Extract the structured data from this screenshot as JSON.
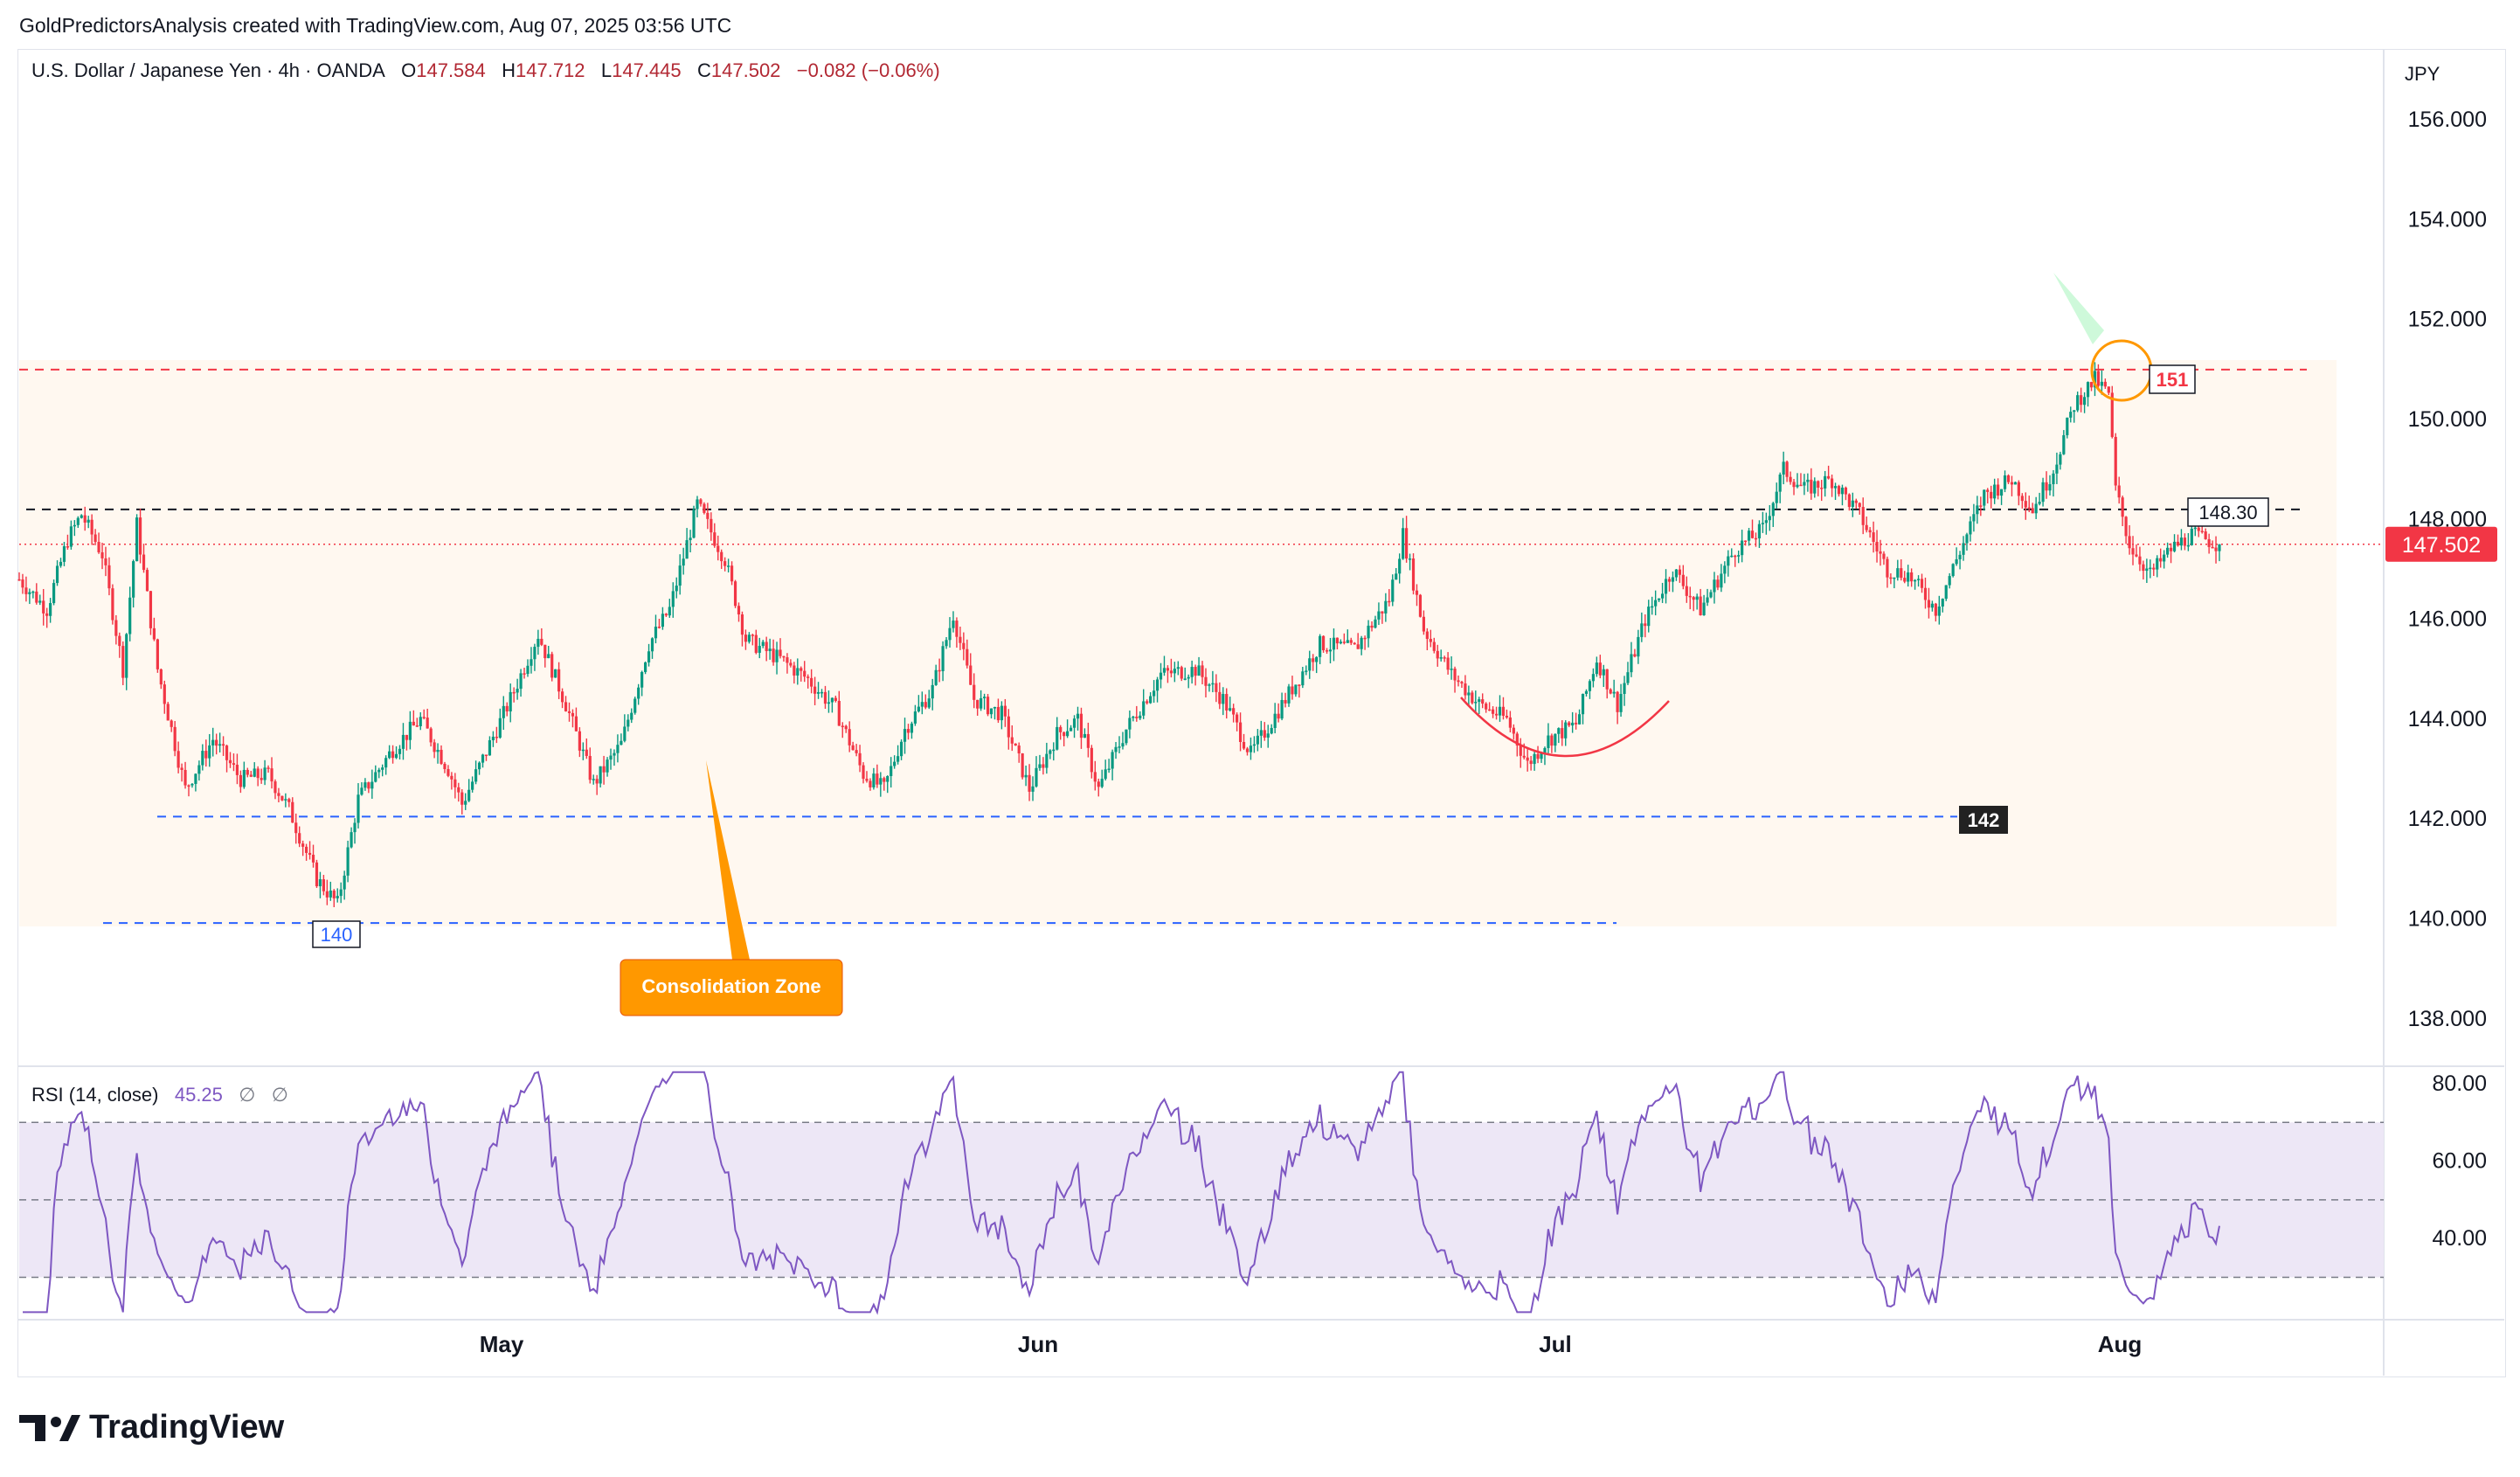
{
  "header": {
    "credit": "GoldPredictorsAnalysis created with TradingView.com, Aug 07, 2025 03:56 UTC"
  },
  "legend": {
    "symbol": "U.S. Dollar / Japanese Yen · 4h · OANDA",
    "o_label": "O",
    "o": "147.584",
    "h_label": "H",
    "h": "147.712",
    "l_label": "L",
    "l": "147.445",
    "c_label": "C",
    "c": "147.502",
    "change": "−0.082 (−0.06%)"
  },
  "currency": "JPY",
  "rsi_legend": {
    "name": "RSI (14, close)",
    "value": "45.25",
    "na1": "∅",
    "na2": "∅"
  },
  "footer": {
    "brand": "TradingView"
  },
  "colors": {
    "up": "#089981",
    "down": "#f23645",
    "rsi_line": "#7e57c2",
    "rsi_band": "#ede7f6",
    "zone": "#fff8f0",
    "price_line": "#f23645",
    "support": "#2962ff",
    "callout": "#ff9800"
  },
  "chart_data": [
    {
      "type": "candlestick",
      "title": "U.S. Dollar / Japanese Yen · 4h · OANDA",
      "y_ticks": [
        "156.000",
        "154.000",
        "152.000",
        "150.000",
        "148.000",
        "146.000",
        "144.000",
        "142.000",
        "140.000",
        "138.000"
      ],
      "x_ticks": [
        "May",
        "Jun",
        "Jul",
        "Aug"
      ],
      "ylim": [
        136.7,
        157.0
      ],
      "grid": false,
      "current_price": "147.502",
      "waypoints": [
        {
          "t": 0,
          "p": 146.8
        },
        {
          "t": 8,
          "p": 146.2
        },
        {
          "t": 14,
          "p": 147.6
        },
        {
          "t": 18,
          "p": 148.1
        },
        {
          "t": 24,
          "p": 147.3
        },
        {
          "t": 30,
          "p": 145.0
        },
        {
          "t": 34,
          "p": 147.9
        },
        {
          "t": 40,
          "p": 145.0
        },
        {
          "t": 48,
          "p": 142.6
        },
        {
          "t": 56,
          "p": 143.6
        },
        {
          "t": 64,
          "p": 142.8
        },
        {
          "t": 72,
          "p": 142.9
        },
        {
          "t": 78,
          "p": 142.2
        },
        {
          "t": 86,
          "p": 140.8
        },
        {
          "t": 92,
          "p": 140.3
        },
        {
          "t": 98,
          "p": 142.4
        },
        {
          "t": 108,
          "p": 143.4
        },
        {
          "t": 116,
          "p": 144.0
        },
        {
          "t": 124,
          "p": 143.0
        },
        {
          "t": 128,
          "p": 142.3
        },
        {
          "t": 134,
          "p": 143.2
        },
        {
          "t": 142,
          "p": 144.4
        },
        {
          "t": 150,
          "p": 145.7
        },
        {
          "t": 158,
          "p": 144.3
        },
        {
          "t": 166,
          "p": 142.7
        },
        {
          "t": 174,
          "p": 143.5
        },
        {
          "t": 182,
          "p": 145.5
        },
        {
          "t": 188,
          "p": 146.2
        },
        {
          "t": 196,
          "p": 148.3
        },
        {
          "t": 204,
          "p": 147.2
        },
        {
          "t": 210,
          "p": 145.6
        },
        {
          "t": 220,
          "p": 145.2
        },
        {
          "t": 228,
          "p": 144.8
        },
        {
          "t": 236,
          "p": 144.2
        },
        {
          "t": 244,
          "p": 142.9
        },
        {
          "t": 250,
          "p": 142.6
        },
        {
          "t": 256,
          "p": 143.8
        },
        {
          "t": 264,
          "p": 144.6
        },
        {
          "t": 270,
          "p": 146.1
        },
        {
          "t": 276,
          "p": 144.4
        },
        {
          "t": 284,
          "p": 144.1
        },
        {
          "t": 292,
          "p": 142.6
        },
        {
          "t": 300,
          "p": 143.7
        },
        {
          "t": 306,
          "p": 144.0
        },
        {
          "t": 312,
          "p": 142.6
        },
        {
          "t": 320,
          "p": 143.8
        },
        {
          "t": 330,
          "p": 144.9
        },
        {
          "t": 340,
          "p": 145.0
        },
        {
          "t": 348,
          "p": 144.4
        },
        {
          "t": 356,
          "p": 143.3
        },
        {
          "t": 366,
          "p": 144.4
        },
        {
          "t": 376,
          "p": 145.5
        },
        {
          "t": 386,
          "p": 145.4
        },
        {
          "t": 396,
          "p": 146.4
        },
        {
          "t": 400,
          "p": 147.7
        },
        {
          "t": 406,
          "p": 145.8
        },
        {
          "t": 414,
          "p": 144.9
        },
        {
          "t": 422,
          "p": 144.3
        },
        {
          "t": 430,
          "p": 144.0
        },
        {
          "t": 436,
          "p": 143.1
        },
        {
          "t": 442,
          "p": 143.6
        },
        {
          "t": 450,
          "p": 143.9
        },
        {
          "t": 456,
          "p": 145.2
        },
        {
          "t": 462,
          "p": 144.3
        },
        {
          "t": 470,
          "p": 146.0
        },
        {
          "t": 478,
          "p": 147.0
        },
        {
          "t": 486,
          "p": 146.2
        },
        {
          "t": 496,
          "p": 147.4
        },
        {
          "t": 504,
          "p": 147.8
        },
        {
          "t": 510,
          "p": 149.0
        },
        {
          "t": 516,
          "p": 148.6
        },
        {
          "t": 524,
          "p": 148.8
        },
        {
          "t": 532,
          "p": 148.1
        },
        {
          "t": 540,
          "p": 147.0
        },
        {
          "t": 546,
          "p": 146.9
        },
        {
          "t": 554,
          "p": 146.2
        },
        {
          "t": 560,
          "p": 147.2
        },
        {
          "t": 568,
          "p": 148.5
        },
        {
          "t": 576,
          "p": 148.8
        },
        {
          "t": 582,
          "p": 148.2
        },
        {
          "t": 588,
          "p": 149.0
        },
        {
          "t": 594,
          "p": 150.3
        },
        {
          "t": 600,
          "p": 150.8
        },
        {
          "t": 604,
          "p": 150.5
        },
        {
          "t": 606,
          "p": 148.6
        },
        {
          "t": 610,
          "p": 147.5
        },
        {
          "t": 616,
          "p": 146.9
        },
        {
          "t": 622,
          "p": 147.4
        },
        {
          "t": 628,
          "p": 147.7
        },
        {
          "t": 636,
          "p": 147.5
        }
      ],
      "annotations": {
        "consolidation_zone": "Consolidation Zone",
        "resistance_151": "151",
        "level_148_30": "148.30",
        "support_142": "142",
        "support_140": "140"
      }
    },
    {
      "type": "line",
      "title": "RSI (14, close)",
      "y_ticks": [
        "80.00",
        "60.00",
        "40.00"
      ],
      "ylim": [
        19,
        85
      ],
      "bands": {
        "upper": 70,
        "middle": 50,
        "lower": 30
      },
      "last_value": 45.25
    }
  ]
}
